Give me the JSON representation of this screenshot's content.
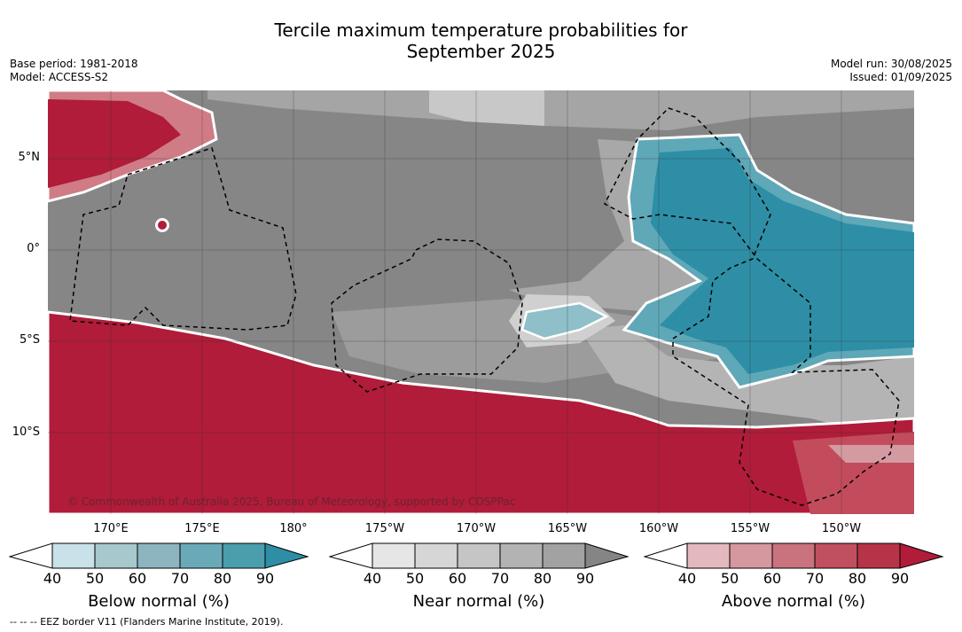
{
  "title_line1": "Tercile maximum temperature probabilities for",
  "title_line2": "September 2025",
  "base_period": "Base period: 1981-2018",
  "model": "Model: ACCESS-S2",
  "model_run": "Model run: 30/08/2025",
  "issued": "Issued: 01/09/2025",
  "copyright": "© Commonwealth of Australia 2025, Bureau of Meteorology, supported by COSPPac",
  "footnote": "--  --  -- EEZ border V11 (Flanders Marine Institute, 2019).",
  "lat_labels": [
    "5°N",
    "0°",
    "5°S",
    "10°S"
  ],
  "lon_labels": [
    "170°E",
    "175°E",
    "180°",
    "175°W",
    "170°W",
    "165°W",
    "160°W",
    "155°W",
    "150°W"
  ],
  "colorbars": [
    {
      "title": "Below normal (%)",
      "ticks": [
        "40",
        "50",
        "60",
        "70",
        "80",
        "90"
      ],
      "colors": [
        "#ffffff",
        "#c9e1e8",
        "#a7c8cd",
        "#8cb5c0",
        "#6aaab8",
        "#4a9eae",
        "#2e8ea6"
      ]
    },
    {
      "title": "Near normal (%)",
      "ticks": [
        "40",
        "50",
        "60",
        "70",
        "80",
        "90"
      ],
      "colors": [
        "#ffffff",
        "#e6e6e6",
        "#d6d6d6",
        "#c5c5c5",
        "#b3b3b3",
        "#a2a2a2",
        "#858585"
      ]
    },
    {
      "title": "Above normal (%)",
      "ticks": [
        "40",
        "50",
        "60",
        "70",
        "80",
        "90"
      ],
      "colors": [
        "#ffffff",
        "#e3b9be",
        "#d7979f",
        "#c9737e",
        "#c05060",
        "#b73347",
        "#b01c39"
      ]
    }
  ],
  "region_colors": {
    "below": "#2e8ea6",
    "near": "#868686",
    "above": "#b01c39"
  }
}
